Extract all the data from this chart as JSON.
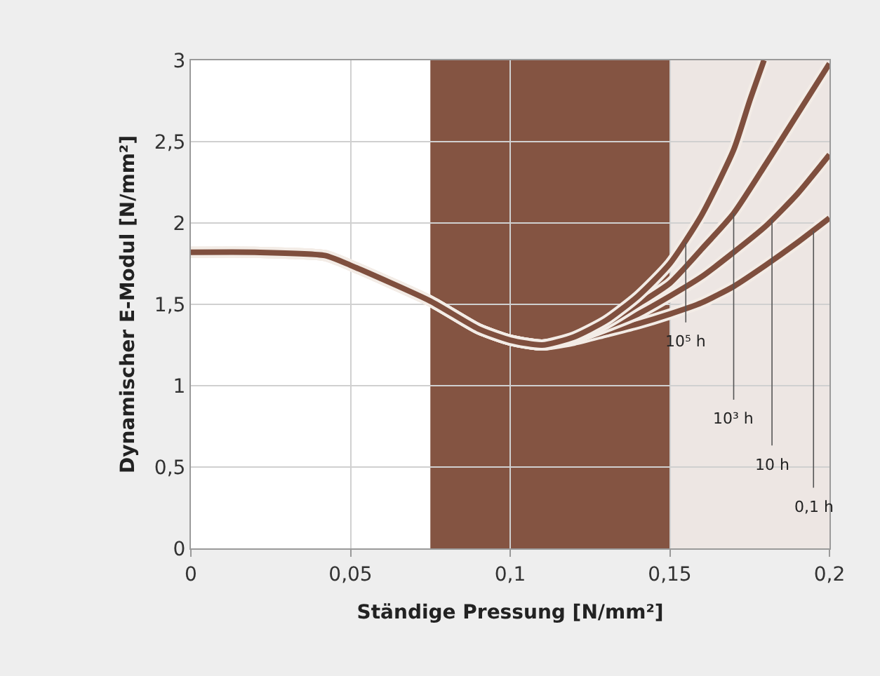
{
  "chart_data": {
    "type": "line",
    "xlabel": "Ständige Pressung [N/mm²]",
    "ylabel": "Dynamischer E-Modul [N/mm²]",
    "xlim": [
      0,
      0.2
    ],
    "ylim": [
      0,
      3
    ],
    "xticks": [
      0,
      {
        "value": 0.05,
        "label": "0,05"
      },
      {
        "value": 0.1,
        "label": "0,1"
      },
      {
        "value": 0.15,
        "label": "0,15"
      },
      {
        "value": 0.2,
        "label": "0,2"
      }
    ],
    "yticks": [
      0,
      {
        "value": 0.5,
        "label": "0,5"
      },
      1,
      {
        "value": 1.5,
        "label": "1,5"
      },
      2,
      {
        "value": 2.5,
        "label": "2,5"
      },
      3
    ],
    "grid": true,
    "marker": "none",
    "line_style": "solid",
    "bands": [
      {
        "axis": "x",
        "from": 0.075,
        "to": 0.15,
        "color": "#845442"
      },
      {
        "axis": "x",
        "from": 0.15,
        "to": 0.2,
        "color": "#ede6e3"
      }
    ],
    "series": [
      {
        "color": "#7f4f3e",
        "x": [
          0,
          0.02,
          0.042,
          0.05,
          0.075,
          0.09,
          0.1,
          0.11,
          0.12,
          0.13,
          0.14,
          0.15,
          0.16,
          0.17,
          0.18,
          0.19,
          0.2
        ],
        "values": [
          1.82,
          1.82,
          1.8,
          1.74,
          1.52,
          1.35,
          1.28,
          1.25,
          1.28,
          1.33,
          1.38,
          1.44,
          1.51,
          1.61,
          1.74,
          1.88,
          2.03
        ]
      },
      {
        "color": "#7f4f3e",
        "x": [
          0,
          0.02,
          0.042,
          0.05,
          0.075,
          0.09,
          0.1,
          0.11,
          0.12,
          0.13,
          0.14,
          0.15,
          0.16,
          0.17,
          0.18,
          0.19,
          0.2
        ],
        "values": [
          1.82,
          1.82,
          1.8,
          1.74,
          1.52,
          1.35,
          1.28,
          1.25,
          1.29,
          1.36,
          1.44,
          1.55,
          1.67,
          1.82,
          1.98,
          2.18,
          2.42
        ]
      },
      {
        "color": "#7f4f3e",
        "x": [
          0,
          0.02,
          0.042,
          0.05,
          0.075,
          0.09,
          0.1,
          0.11,
          0.12,
          0.13,
          0.14,
          0.15,
          0.16,
          0.17,
          0.18,
          0.19,
          0.2
        ],
        "values": [
          1.82,
          1.82,
          1.8,
          1.74,
          1.52,
          1.35,
          1.28,
          1.25,
          1.29,
          1.38,
          1.5,
          1.63,
          1.84,
          2.06,
          2.36,
          2.67,
          2.98
        ]
      },
      {
        "color": "#7f4f3e",
        "x": [
          0,
          0.02,
          0.042,
          0.05,
          0.075,
          0.09,
          0.1,
          0.11,
          0.12,
          0.13,
          0.14,
          0.15,
          0.16,
          0.17,
          0.175,
          0.1795
        ],
        "values": [
          1.82,
          1.82,
          1.8,
          1.74,
          1.52,
          1.35,
          1.28,
          1.25,
          1.3,
          1.4,
          1.55,
          1.75,
          2.05,
          2.45,
          2.75,
          3.0
        ]
      }
    ],
    "annotations": [
      {
        "text": "10⁵ h",
        "x": 0.155,
        "y": 1.88
      },
      {
        "text": "10³ h",
        "x": 0.17,
        "y": 2.06
      },
      {
        "text": "10 h",
        "x": 0.182,
        "y": 2.02
      },
      {
        "text": "0,1 h",
        "x": 0.195,
        "y": 1.95
      }
    ]
  }
}
